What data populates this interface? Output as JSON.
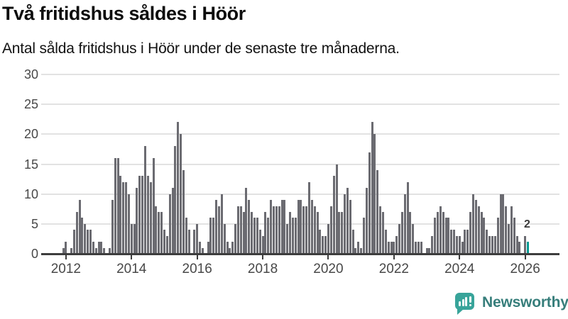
{
  "header": {
    "title": "Två fritidshus såldes i Höör",
    "subtitle": "Antal sålda fritidshus i Höör under de senaste tre månaderna."
  },
  "chart_data": {
    "type": "bar",
    "title": "Två fritidshus såldes i Höör",
    "subtitle": "Antal sålda fritidshus i Höör under de senaste tre månaderna.",
    "frequency": "monthly",
    "x_start": "2011-12",
    "x_end": "2026-02",
    "values": [
      1,
      2,
      0,
      1,
      4,
      7,
      9,
      6,
      5,
      4,
      4,
      2,
      1,
      2,
      2,
      1,
      0,
      1,
      9,
      16,
      16,
      13,
      12,
      12,
      10,
      5,
      5,
      11,
      13,
      13,
      18,
      13,
      12,
      16,
      8,
      7,
      7,
      4,
      3,
      10,
      11,
      18,
      22,
      20,
      14,
      6,
      4,
      0,
      4,
      5,
      2,
      1,
      0,
      2,
      6,
      6,
      9,
      8,
      10,
      5,
      2,
      1,
      2,
      5,
      8,
      8,
      7,
      11,
      9,
      7,
      6,
      6,
      4,
      3,
      7,
      6,
      9,
      8,
      8,
      8,
      9,
      9,
      5,
      7,
      6,
      6,
      9,
      9,
      8,
      8,
      12,
      9,
      8,
      7,
      4,
      3,
      3,
      5,
      8,
      13,
      15,
      7,
      7,
      10,
      11,
      9,
      4,
      1,
      2,
      1,
      6,
      11,
      17,
      22,
      20,
      14,
      8,
      7,
      4,
      2,
      2,
      2,
      3,
      5,
      7,
      10,
      12,
      7,
      5,
      2,
      2,
      2,
      0,
      1,
      1,
      3,
      6,
      7,
      8,
      7,
      6,
      6,
      4,
      4,
      3,
      3,
      2,
      4,
      4,
      7,
      10,
      9,
      8,
      7,
      6,
      4,
      3,
      3,
      3,
      6,
      10,
      10,
      8,
      5,
      8,
      6,
      3,
      2,
      0,
      3,
      2
    ],
    "x_tick_labels": [
      "2012",
      "2014",
      "2016",
      "2018",
      "2020",
      "2022",
      "2024",
      "2026"
    ],
    "y_ticks": [
      0,
      5,
      10,
      15,
      20,
      25,
      30
    ],
    "ylim": [
      0,
      30
    ],
    "grid": "horizontal",
    "legend": "none",
    "bar_color": "#6b6b71",
    "axis_color": "#3d3d3d",
    "gridline_color": "#e2e2e2",
    "tick_label_color": "#484848",
    "highlight": {
      "position": "last",
      "value": 2,
      "label": "2",
      "color": "#009a92"
    }
  },
  "footer": {
    "brand": "Newsworthy",
    "brand_color": "#377e7b",
    "icon_color": "#38a49a"
  }
}
